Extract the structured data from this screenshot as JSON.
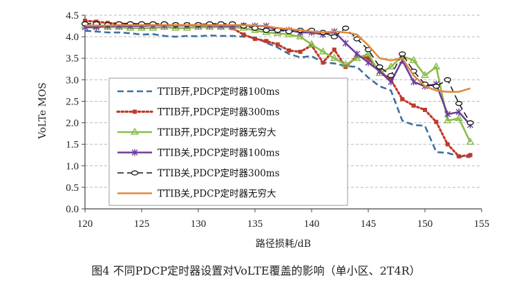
{
  "caption": "图4 不同PDCP定时器设置对VoLTE覆盖的影响（单小区、2T4R）",
  "chart_data": {
    "type": "line",
    "title": "",
    "xlabel": "路径损耗/dB",
    "ylabel": "VoLTe MOS",
    "xlim": [
      120,
      155
    ],
    "ylim": [
      0,
      4.5
    ],
    "xticks": [
      120,
      125,
      130,
      135,
      140,
      145,
      150,
      155
    ],
    "yticks": [
      "0.0",
      "0.5",
      "1.0",
      "1.5",
      "2.0",
      "2.5",
      "3.0",
      "3.5",
      "4.0",
      "4.5"
    ],
    "grid": "horizontal dashed",
    "legend_position": "inside lower-left",
    "series": [
      {
        "name": "TTIB开,PDCP定时器100ms",
        "color": "#3a6fa0",
        "line_style": "dashed",
        "marker": "none",
        "x": [
          120,
          121,
          122,
          123,
          124,
          125,
          126,
          127,
          128,
          129,
          130,
          131,
          132,
          133,
          134,
          135,
          136,
          137,
          138,
          139,
          140,
          141,
          142,
          143,
          144,
          145,
          146,
          147,
          148,
          149,
          150,
          151,
          152,
          153,
          154
        ],
        "y": [
          4.14,
          4.12,
          4.1,
          4.1,
          4.08,
          4.05,
          4.06,
          4.02,
          4.0,
          4.02,
          4.01,
          4.03,
          4.02,
          4.02,
          4.0,
          3.98,
          3.86,
          3.75,
          3.6,
          3.52,
          3.55,
          3.4,
          3.38,
          3.32,
          3.3,
          3.05,
          2.85,
          2.75,
          2.05,
          1.95,
          1.93,
          1.32,
          1.3,
          1.22,
          1.2
        ]
      },
      {
        "name": "TTIB开,PDCP定时器300ms",
        "color": "#c0392b",
        "line_style": "dotted",
        "marker": "square",
        "x": [
          120,
          121,
          122,
          123,
          124,
          125,
          126,
          127,
          128,
          129,
          130,
          131,
          132,
          133,
          134,
          135,
          136,
          137,
          138,
          139,
          140,
          141,
          142,
          143,
          144,
          145,
          146,
          147,
          148,
          149,
          150,
          151,
          152,
          153,
          154
        ],
        "y": [
          4.37,
          4.35,
          4.32,
          4.3,
          4.3,
          4.28,
          4.28,
          4.27,
          4.27,
          4.27,
          4.27,
          4.27,
          4.26,
          4.2,
          4.05,
          3.95,
          3.9,
          3.82,
          3.68,
          3.65,
          3.8,
          3.4,
          3.7,
          3.3,
          3.55,
          3.5,
          3.2,
          3.0,
          2.55,
          2.4,
          2.3,
          2.02,
          1.5,
          1.22,
          1.25
        ]
      },
      {
        "name": "TTIB开,PDCP定时器无穷大",
        "color": "#8bbb4c",
        "line_style": "solid",
        "marker": "triangle",
        "x": [
          120,
          121,
          122,
          123,
          124,
          125,
          126,
          127,
          128,
          129,
          130,
          131,
          132,
          133,
          134,
          135,
          136,
          137,
          138,
          139,
          140,
          141,
          142,
          143,
          144,
          145,
          146,
          147,
          148,
          149,
          150,
          151,
          152,
          153,
          154
        ],
        "y": [
          4.25,
          4.24,
          4.22,
          4.22,
          4.2,
          4.2,
          4.2,
          4.22,
          4.2,
          4.2,
          4.22,
          4.22,
          4.22,
          4.22,
          4.2,
          4.15,
          4.1,
          4.08,
          4.05,
          4.0,
          3.82,
          3.65,
          3.5,
          3.35,
          3.5,
          3.6,
          3.15,
          3.3,
          3.55,
          3.45,
          3.1,
          3.3,
          2.05,
          2.1,
          1.55
        ]
      },
      {
        "name": "TTIB关,PDCP定时器100ms",
        "color": "#6a3d9a",
        "line_style": "solid",
        "marker": "star",
        "x": [
          120,
          121,
          122,
          123,
          124,
          125,
          126,
          127,
          128,
          129,
          130,
          131,
          132,
          133,
          134,
          135,
          136,
          137,
          138,
          139,
          140,
          141,
          142,
          143,
          144,
          145,
          146,
          147,
          148,
          149,
          150,
          151,
          152,
          153,
          154
        ],
        "y": [
          4.22,
          4.22,
          4.25,
          4.25,
          4.25,
          4.25,
          4.26,
          4.26,
          4.26,
          4.26,
          4.26,
          4.26,
          4.25,
          4.25,
          4.26,
          4.25,
          4.25,
          4.15,
          4.15,
          4.1,
          4.1,
          4.05,
          4.12,
          3.85,
          3.6,
          3.4,
          3.2,
          2.95,
          3.45,
          2.95,
          2.85,
          2.9,
          2.2,
          2.25,
          1.95
        ]
      },
      {
        "name": "TTIB关,PDCP定时器300ms",
        "color": "#111111",
        "line_style": "dashed",
        "marker": "open-circle",
        "x": [
          120,
          121,
          122,
          123,
          124,
          125,
          126,
          127,
          128,
          129,
          130,
          131,
          132,
          133,
          134,
          135,
          136,
          137,
          138,
          139,
          140,
          141,
          142,
          143,
          144,
          145,
          146,
          147,
          148,
          149,
          150,
          151,
          152,
          153,
          154
        ],
        "y": [
          4.3,
          4.3,
          4.28,
          4.3,
          4.3,
          4.3,
          4.3,
          4.3,
          4.28,
          4.28,
          4.28,
          4.3,
          4.3,
          4.3,
          4.25,
          4.2,
          4.15,
          4.15,
          4.12,
          4.15,
          4.15,
          4.1,
          4.0,
          4.2,
          3.95,
          3.7,
          3.3,
          3.1,
          3.6,
          3.2,
          2.9,
          2.85,
          3.0,
          2.45,
          2.0
        ]
      },
      {
        "name": "TTIB关,PDCP定时器无穷大",
        "color": "#e08a3c",
        "line_style": "solid",
        "marker": "none",
        "x": [
          120,
          121,
          122,
          123,
          124,
          125,
          126,
          127,
          128,
          129,
          130,
          131,
          132,
          133,
          134,
          135,
          136,
          137,
          138,
          139,
          140,
          141,
          142,
          143,
          144,
          145,
          146,
          147,
          148,
          149,
          150,
          151,
          152,
          153,
          154
        ],
        "y": [
          4.26,
          4.26,
          4.26,
          4.27,
          4.27,
          4.27,
          4.27,
          4.27,
          4.27,
          4.27,
          4.27,
          4.27,
          4.27,
          4.27,
          4.27,
          4.26,
          4.25,
          4.2,
          4.18,
          4.15,
          4.12,
          4.1,
          4.12,
          4.1,
          4.05,
          3.8,
          3.5,
          3.45,
          3.5,
          3.1,
          2.85,
          2.75,
          2.72,
          2.72,
          2.8
        ]
      }
    ]
  }
}
